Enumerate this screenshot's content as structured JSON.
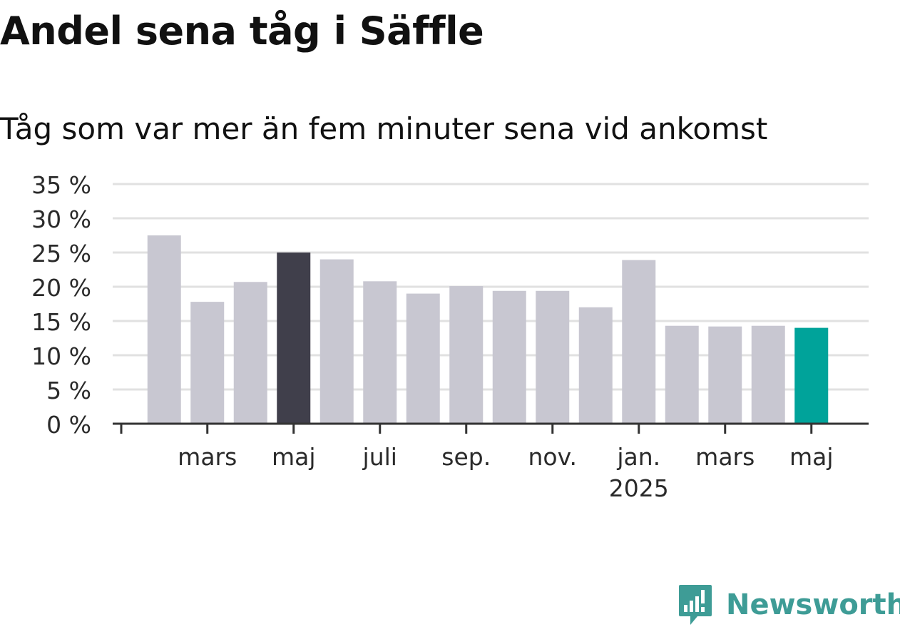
{
  "chart_data": {
    "type": "bar",
    "title": "Andel sena tåg i Säffle",
    "subtitle": "Tåg som var mer än fem minuter sena vid ankomst",
    "xlabel": "",
    "ylabel": "",
    "categories": [
      "2024-02",
      "2024-03",
      "2024-04",
      "2024-05",
      "2024-06",
      "2024-07",
      "2024-08",
      "2024-09",
      "2024-10",
      "2024-11",
      "2024-12",
      "2025-01",
      "2025-02",
      "2025-03",
      "2025-04",
      "2025-05"
    ],
    "values": [
      27.5,
      17.8,
      20.7,
      25.0,
      24.0,
      20.8,
      19.0,
      20.1,
      19.4,
      19.4,
      17.0,
      23.9,
      14.3,
      14.2,
      14.3,
      14.0
    ],
    "highlight_index": 3,
    "current_index": 15,
    "ylim": [
      0,
      35
    ],
    "yticks": [
      0,
      5,
      10,
      15,
      20,
      25,
      30,
      35
    ],
    "ytick_labels": [
      "0 %",
      "5 %",
      "10 %",
      "15 %",
      "20 %",
      "25 %",
      "30 %",
      "35 %"
    ],
    "xtick_labels": [
      {
        "index": 1,
        "label": "mars",
        "sublabel": ""
      },
      {
        "index": 3,
        "label": "maj",
        "sublabel": ""
      },
      {
        "index": 5,
        "label": "juli",
        "sublabel": ""
      },
      {
        "index": 7,
        "label": "sep.",
        "sublabel": ""
      },
      {
        "index": 9,
        "label": "nov.",
        "sublabel": ""
      },
      {
        "index": 11,
        "label": "jan.",
        "sublabel": "2025"
      },
      {
        "index": 13,
        "label": "mars",
        "sublabel": ""
      },
      {
        "index": 15,
        "label": "maj",
        "sublabel": ""
      }
    ],
    "grid": true,
    "colors": {
      "bar": "#c8c7d1",
      "highlight": "#403f4b",
      "current": "#00a39a",
      "grid": "#e1e1e1",
      "axis": "#333333"
    }
  },
  "branding": {
    "name": "Newsworthy",
    "color": "#3e9c96",
    "icon": "newsworthy-logo-icon"
  }
}
